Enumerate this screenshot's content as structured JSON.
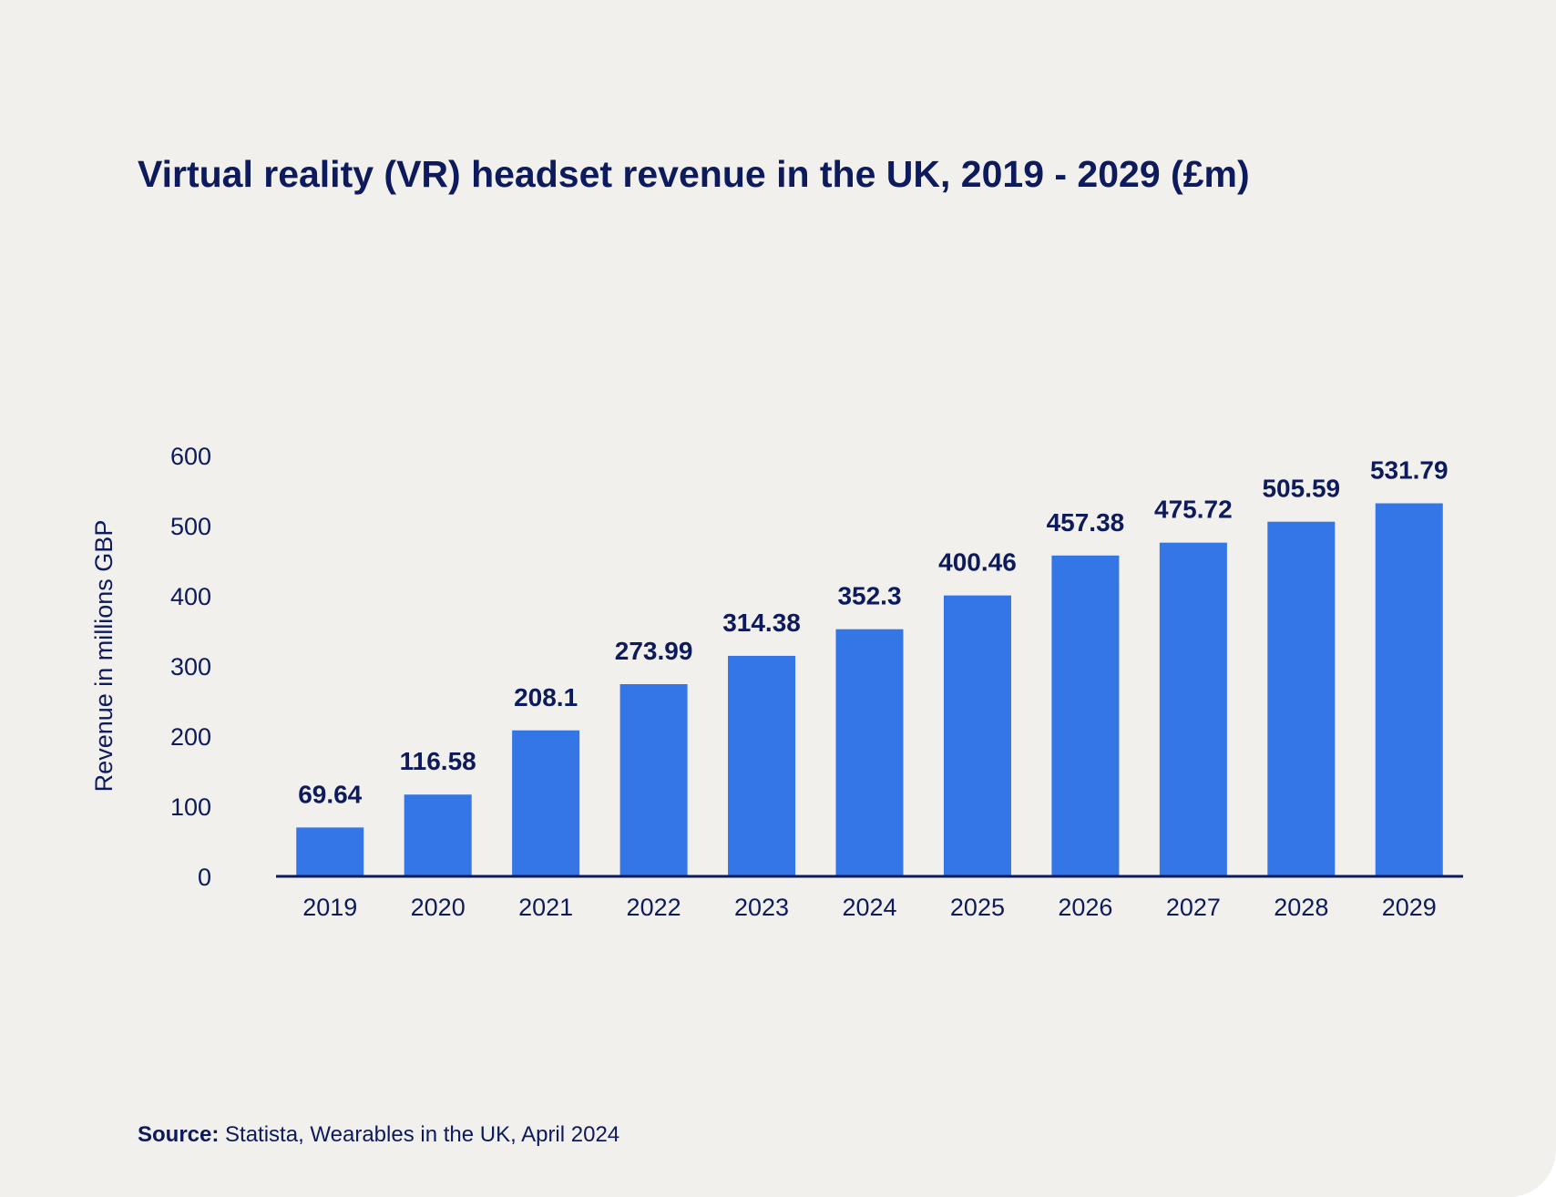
{
  "title": "Virtual reality (VR) headset revenue in the UK, 2019 - 2029 (£m)",
  "source": {
    "label": "Source:",
    "text": "Statista, Wearables in the UK, April 2024"
  },
  "colors": {
    "bar": "#3476e6",
    "text": "#0d1a5c",
    "background": "#f1f0ec"
  },
  "chart_data": {
    "type": "bar",
    "title": "Virtual reality (VR) headset revenue in the UK, 2019 - 2029 (£m)",
    "xlabel": "",
    "ylabel": "Revenue in millions GBP",
    "categories": [
      "2019",
      "2020",
      "2021",
      "2022",
      "2023",
      "2024",
      "2025",
      "2026",
      "2027",
      "2028",
      "2029"
    ],
    "values": [
      69.64,
      116.58,
      208.1,
      273.99,
      314.38,
      352.3,
      400.46,
      457.38,
      475.72,
      505.59,
      531.79
    ],
    "value_labels": [
      "69.64",
      "116.58",
      "208.1",
      "273.99",
      "314.38",
      "352.3",
      "400.46",
      "457.38",
      "475.72",
      "505.59",
      "531.79"
    ],
    "yticks": [
      "0",
      "100",
      "200",
      "300",
      "400",
      "500",
      "600"
    ],
    "ylim": [
      0,
      600
    ],
    "grid": false,
    "legend": "none"
  }
}
